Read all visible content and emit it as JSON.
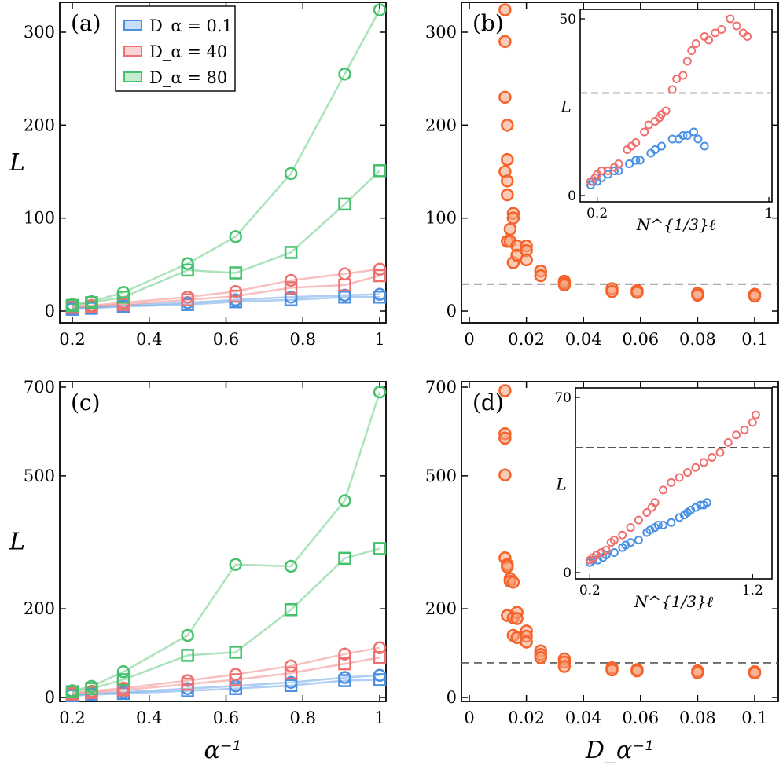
{
  "colors": {
    "blue": "#4a90e2",
    "red": "#f07070",
    "green": "#44c16a",
    "orange": "#f5622a",
    "dash": "#555555"
  },
  "legend": [
    "D_α = 0.1",
    "D_α = 40",
    "D_α = 80"
  ],
  "chart_data": [
    {
      "panel": "(a)",
      "type": "line",
      "ylabel": "L",
      "xlabel": "",
      "xlim": [
        0.17,
        1.0
      ],
      "ylim": [
        -5,
        330
      ],
      "xticks": [
        "0.2",
        "0.4",
        "0.6",
        "0.8",
        "1"
      ],
      "yticks": [
        "0",
        "100",
        "200",
        "300"
      ],
      "x": [
        0.2,
        0.25,
        0.333,
        0.5,
        0.625,
        0.769,
        0.909,
        1.0
      ],
      "series": [
        {
          "name": "D_α = 0.1",
          "color": "blue",
          "marker": "circle",
          "values": [
            3,
            4,
            6,
            9,
            12,
            15,
            17,
            18
          ]
        },
        {
          "name": "D_α = 0.1",
          "color": "blue",
          "marker": "square",
          "values": [
            2,
            3,
            5,
            7,
            10,
            12,
            15,
            15
          ]
        },
        {
          "name": "D_α = 40",
          "color": "red",
          "marker": "circle",
          "values": [
            5,
            6,
            9,
            15,
            21,
            33,
            40,
            45
          ]
        },
        {
          "name": "D_α = 40",
          "color": "red",
          "marker": "square",
          "values": [
            4,
            5,
            7,
            12,
            16,
            25,
            28,
            38
          ]
        },
        {
          "name": "D_α = 80",
          "color": "green",
          "marker": "circle",
          "values": [
            7,
            10,
            20,
            51,
            80,
            148,
            255,
            324
          ]
        },
        {
          "name": "D_α = 80",
          "color": "green",
          "marker": "square",
          "values": [
            6,
            9,
            15,
            44,
            41,
            63,
            115,
            151
          ]
        }
      ]
    },
    {
      "panel": "(b)",
      "type": "scatter",
      "ylabel": "",
      "xlabel": "",
      "xlim": [
        0,
        0.108
      ],
      "ylim": [
        -5,
        330
      ],
      "xticks": [
        "0",
        "0.02",
        "0.04",
        "0.06",
        "0.08",
        "0.1"
      ],
      "yticks": [
        "0",
        "100",
        "200",
        "300"
      ],
      "hline": 29,
      "points": [
        [
          0.0125,
          324
        ],
        [
          0.0125,
          290
        ],
        [
          0.0125,
          230
        ],
        [
          0.0125,
          150
        ],
        [
          0.0133,
          200
        ],
        [
          0.0133,
          140
        ],
        [
          0.0133,
          163
        ],
        [
          0.0133,
          125
        ],
        [
          0.0133,
          75
        ],
        [
          0.0143,
          88
        ],
        [
          0.0143,
          75
        ],
        [
          0.0154,
          105
        ],
        [
          0.0154,
          100
        ],
        [
          0.0154,
          52
        ],
        [
          0.0167,
          70
        ],
        [
          0.0167,
          60
        ],
        [
          0.02,
          70
        ],
        [
          0.02,
          65
        ],
        [
          0.02,
          55
        ],
        [
          0.025,
          43
        ],
        [
          0.025,
          38
        ],
        [
          0.0333,
          32
        ],
        [
          0.0333,
          30
        ],
        [
          0.0333,
          28
        ],
        [
          0.05,
          24
        ],
        [
          0.05,
          21
        ],
        [
          0.0588,
          22
        ],
        [
          0.0588,
          20
        ],
        [
          0.08,
          19
        ],
        [
          0.08,
          17
        ],
        [
          0.1,
          18
        ],
        [
          0.1,
          16
        ]
      ],
      "inset": {
        "xlabel": "N^{1/3}ℓ",
        "ylabel": "L",
        "xlim": [
          0.15,
          1.0
        ],
        "ylim": [
          0,
          50
        ],
        "xticks": [
          "0.2",
          "1"
        ],
        "yticks": [
          "0",
          "50"
        ],
        "hline": 29,
        "blue": [
          [
            0.17,
            3
          ],
          [
            0.18,
            4
          ],
          [
            0.2,
            4
          ],
          [
            0.22,
            5
          ],
          [
            0.25,
            6
          ],
          [
            0.28,
            7
          ],
          [
            0.3,
            7
          ],
          [
            0.35,
            9
          ],
          [
            0.38,
            10
          ],
          [
            0.4,
            10
          ],
          [
            0.45,
            12
          ],
          [
            0.47,
            13
          ],
          [
            0.5,
            14
          ],
          [
            0.55,
            16
          ],
          [
            0.58,
            16
          ],
          [
            0.6,
            17
          ],
          [
            0.62,
            17
          ],
          [
            0.65,
            18
          ],
          [
            0.67,
            16
          ],
          [
            0.7,
            14
          ]
        ],
        "red": [
          [
            0.17,
            4
          ],
          [
            0.19,
            5
          ],
          [
            0.2,
            6
          ],
          [
            0.22,
            7
          ],
          [
            0.25,
            7
          ],
          [
            0.28,
            8
          ],
          [
            0.3,
            9
          ],
          [
            0.34,
            13
          ],
          [
            0.36,
            14
          ],
          [
            0.38,
            15
          ],
          [
            0.42,
            18
          ],
          [
            0.44,
            20
          ],
          [
            0.47,
            21
          ],
          [
            0.49,
            22
          ],
          [
            0.5,
            23
          ],
          [
            0.52,
            24
          ],
          [
            0.55,
            30
          ],
          [
            0.57,
            33
          ],
          [
            0.6,
            34
          ],
          [
            0.62,
            38
          ],
          [
            0.64,
            41
          ],
          [
            0.66,
            43
          ],
          [
            0.7,
            45
          ],
          [
            0.72,
            44
          ],
          [
            0.75,
            46
          ],
          [
            0.78,
            47
          ],
          [
            0.82,
            50
          ],
          [
            0.85,
            48
          ],
          [
            0.88,
            46
          ],
          [
            0.9,
            45
          ]
        ]
      }
    },
    {
      "panel": "(c)",
      "type": "line",
      "ylabel": "L",
      "xlabel": "α⁻¹",
      "xlim": [
        0.17,
        1.0
      ],
      "ylim": [
        -5,
        700
      ],
      "xticks": [
        "0.2",
        "0.4",
        "0.6",
        "0.8",
        "1"
      ],
      "yticks": [
        "0",
        "200",
        "500",
        "700"
      ],
      "x": [
        0.2,
        0.25,
        0.333,
        0.5,
        0.625,
        0.769,
        0.909,
        1.0
      ],
      "series": [
        {
          "name": "D_α = 0.1",
          "color": "blue",
          "marker": "circle",
          "values": [
            6,
            8,
            12,
            20,
            26,
            34,
            45,
            50
          ]
        },
        {
          "name": "D_α = 0.1",
          "color": "blue",
          "marker": "square",
          "values": [
            4,
            6,
            9,
            15,
            20,
            27,
            38,
            40
          ]
        },
        {
          "name": "D_α = 40",
          "color": "red",
          "marker": "circle",
          "values": [
            10,
            14,
            21,
            38,
            52,
            71,
            98,
            112
          ]
        },
        {
          "name": "D_α = 40",
          "color": "red",
          "marker": "square",
          "values": [
            8,
            11,
            17,
            30,
            40,
            55,
            76,
            90
          ]
        },
        {
          "name": "D_α = 80",
          "color": "green",
          "marker": "circle",
          "values": [
            15,
            25,
            58,
            140,
            300,
            296,
            444,
            689
          ]
        },
        {
          "name": "D_α = 80",
          "color": "green",
          "marker": "square",
          "values": [
            13,
            20,
            40,
            95,
            102,
            198,
            314,
            336
          ]
        }
      ]
    },
    {
      "panel": "(d)",
      "type": "scatter",
      "ylabel": "",
      "xlabel": "D_α⁻¹",
      "xlim": [
        0,
        0.108
      ],
      "ylim": [
        -5,
        700
      ],
      "xticks": [
        "0",
        "0.02",
        "0.04",
        "0.06",
        "0.08",
        "0.1"
      ],
      "yticks": [
        "0",
        "200",
        "500",
        "700"
      ],
      "hline": 78,
      "points": [
        [
          0.0125,
          692
        ],
        [
          0.0125,
          595
        ],
        [
          0.0125,
          585
        ],
        [
          0.0125,
          502
        ],
        [
          0.0125,
          315
        ],
        [
          0.0133,
          300
        ],
        [
          0.0133,
          295
        ],
        [
          0.0143,
          268
        ],
        [
          0.0143,
          262
        ],
        [
          0.0154,
          260
        ],
        [
          0.0133,
          185
        ],
        [
          0.0154,
          180
        ],
        [
          0.0167,
          192
        ],
        [
          0.0167,
          178
        ],
        [
          0.0154,
          140
        ],
        [
          0.0167,
          135
        ],
        [
          0.02,
          150
        ],
        [
          0.02,
          138
        ],
        [
          0.02,
          125
        ],
        [
          0.025,
          105
        ],
        [
          0.025,
          97
        ],
        [
          0.025,
          90
        ],
        [
          0.0333,
          87
        ],
        [
          0.0333,
          80
        ],
        [
          0.0333,
          70
        ],
        [
          0.05,
          67
        ],
        [
          0.05,
          62
        ],
        [
          0.0588,
          63
        ],
        [
          0.0588,
          60
        ],
        [
          0.08,
          60
        ],
        [
          0.08,
          56
        ],
        [
          0.1,
          58
        ],
        [
          0.1,
          55
        ]
      ],
      "inset": {
        "xlabel": "N^{1/3}ℓ",
        "ylabel": "L",
        "xlim": [
          0.15,
          1.3
        ],
        "ylim": [
          0,
          70
        ],
        "xticks": [
          "0.2",
          "1.2"
        ],
        "yticks": [
          "0",
          "70"
        ],
        "hline": 50,
        "blue": [
          [
            0.2,
            4
          ],
          [
            0.22,
            5
          ],
          [
            0.25,
            5
          ],
          [
            0.28,
            6
          ],
          [
            0.3,
            7
          ],
          [
            0.35,
            8
          ],
          [
            0.4,
            10
          ],
          [
            0.42,
            11
          ],
          [
            0.45,
            12
          ],
          [
            0.5,
            13
          ],
          [
            0.55,
            16
          ],
          [
            0.57,
            17
          ],
          [
            0.6,
            18
          ],
          [
            0.62,
            19
          ],
          [
            0.65,
            19
          ],
          [
            0.7,
            20
          ],
          [
            0.75,
            22
          ],
          [
            0.78,
            23
          ],
          [
            0.8,
            24
          ],
          [
            0.82,
            25
          ],
          [
            0.85,
            26
          ],
          [
            0.88,
            27
          ],
          [
            0.9,
            27
          ],
          [
            0.92,
            28
          ]
        ],
        "red": [
          [
            0.2,
            5
          ],
          [
            0.22,
            6
          ],
          [
            0.24,
            7
          ],
          [
            0.27,
            8
          ],
          [
            0.3,
            9
          ],
          [
            0.33,
            12
          ],
          [
            0.35,
            13
          ],
          [
            0.4,
            15
          ],
          [
            0.45,
            18
          ],
          [
            0.5,
            21
          ],
          [
            0.55,
            24
          ],
          [
            0.58,
            26
          ],
          [
            0.6,
            28
          ],
          [
            0.65,
            33
          ],
          [
            0.7,
            36
          ],
          [
            0.75,
            38
          ],
          [
            0.8,
            40
          ],
          [
            0.85,
            42
          ],
          [
            0.9,
            44
          ],
          [
            0.95,
            46
          ],
          [
            1.0,
            48
          ],
          [
            1.05,
            52
          ],
          [
            1.1,
            55
          ],
          [
            1.15,
            57
          ],
          [
            1.2,
            60
          ],
          [
            1.22,
            63
          ]
        ]
      }
    }
  ]
}
